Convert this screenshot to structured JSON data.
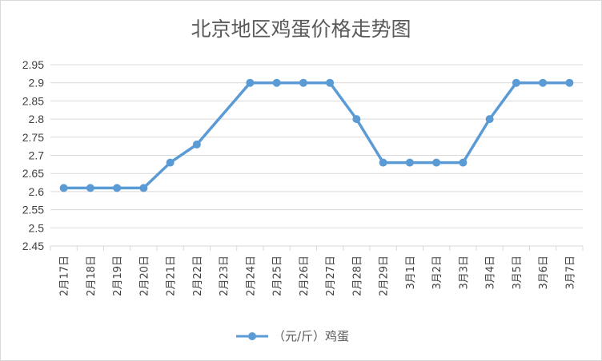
{
  "chart_data": {
    "type": "line",
    "title": "北京地区鸡蛋价格走势图",
    "categories": [
      "2月17日",
      "2月18日",
      "2月19日",
      "2月20日",
      "2月21日",
      "2月22日",
      "2月23日",
      "2月24日",
      "2月25日",
      "2月26日",
      "2月27日",
      "2月28日",
      "2月29日",
      "3月1日",
      "3月2日",
      "3月3日",
      "3月4日",
      "3月5日",
      "3月6日",
      "3月7日"
    ],
    "series": [
      {
        "name": "（元/斤）鸡蛋",
        "color": "#5b9bd5",
        "values": [
          2.61,
          2.61,
          2.61,
          2.61,
          2.68,
          2.73,
          null,
          2.9,
          2.9,
          2.9,
          2.9,
          2.8,
          2.68,
          2.68,
          2.68,
          2.68,
          2.8,
          2.9,
          2.9,
          2.9
        ]
      }
    ],
    "yticks": [
      "2.45",
      "2.5",
      "2.55",
      "2.6",
      "2.65",
      "2.7",
      "2.75",
      "2.8",
      "2.85",
      "2.9",
      "2.95"
    ],
    "ylim": [
      2.45,
      2.95
    ],
    "grid": true,
    "legend": "bottom"
  }
}
